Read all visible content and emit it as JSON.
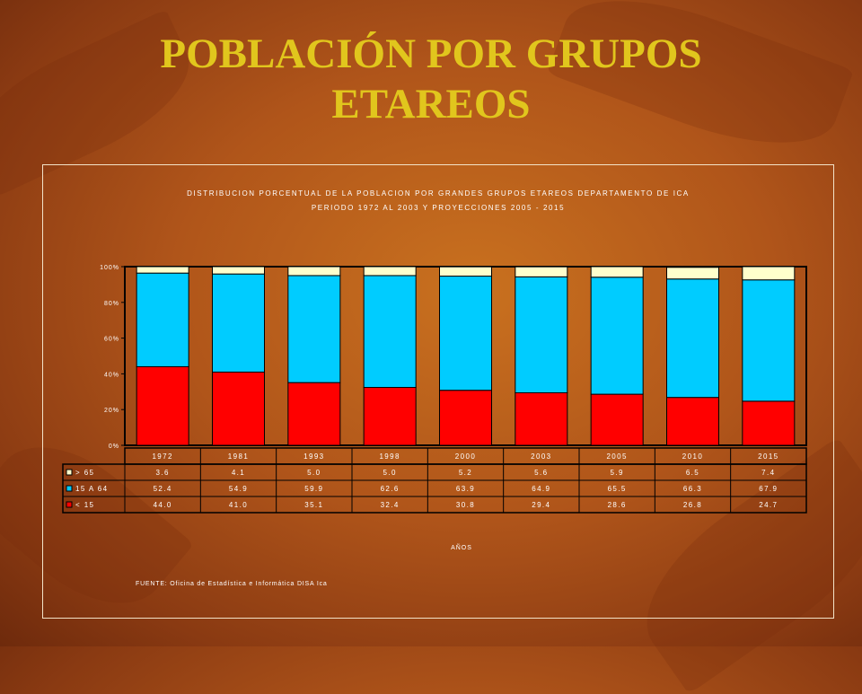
{
  "slide": {
    "title_line1": "POBLACIÓN POR GRUPOS",
    "title_line2": "ETAREOS"
  },
  "colors": {
    "over65": "#ffffcc",
    "age15to64": "#00ccff",
    "under15": "#ff0000",
    "title": "#e1c61d"
  },
  "chart_data": {
    "type": "bar",
    "stacked": true,
    "title": "DISTRIBUCION PORCENTUAL DE LA POBLACION POR GRANDES GRUPOS ETAREOS DEPARTAMENTO DE ICA",
    "subtitle": "PERIODO 1972 AL 2003 Y PROYECCIONES 2005 - 2015",
    "xlabel": "AÑOS",
    "ylabel": "",
    "ylim": [
      0,
      100
    ],
    "yticks": [
      "0%",
      "20%",
      "40%",
      "60%",
      "80%",
      "100%"
    ],
    "categories": [
      "1972",
      "1981",
      "1993",
      "1998",
      "2000",
      "2003",
      "2005",
      "2010",
      "2015"
    ],
    "series": [
      {
        "name": "< 15",
        "color": "#ff0000",
        "values": [
          44.0,
          41.0,
          35.1,
          32.4,
          30.8,
          29.4,
          28.6,
          26.8,
          24.7
        ],
        "labels": [
          "44.0",
          "41.0",
          "35.1",
          "32.4",
          "30.8",
          "29.4",
          "28.6",
          "26.8",
          "24.7"
        ]
      },
      {
        "name": "15 A 64",
        "color": "#00ccff",
        "values": [
          52.4,
          54.9,
          59.9,
          62.6,
          63.9,
          64.9,
          65.5,
          66.3,
          67.9
        ],
        "labels": [
          "52.4",
          "54.9",
          "59.9",
          "62.6",
          "63.9",
          "64.9",
          "65.5",
          "66.3",
          "67.9"
        ]
      },
      {
        "name": "> 65",
        "color": "#ffffcc",
        "values": [
          3.6,
          4.1,
          5.0,
          5.0,
          5.2,
          5.6,
          5.9,
          6.5,
          7.4
        ],
        "labels": [
          "3.6",
          "4.1",
          "5.0",
          "5.0",
          "5.2",
          "5.6",
          "5.9",
          "6.5",
          "7.4"
        ]
      }
    ],
    "table_order": [
      "> 65",
      "15 A 64",
      "< 15"
    ],
    "grid": false,
    "legend": "data-table"
  },
  "source": "FUENTE: Oficina de Estadística e Informática DISA Ica"
}
